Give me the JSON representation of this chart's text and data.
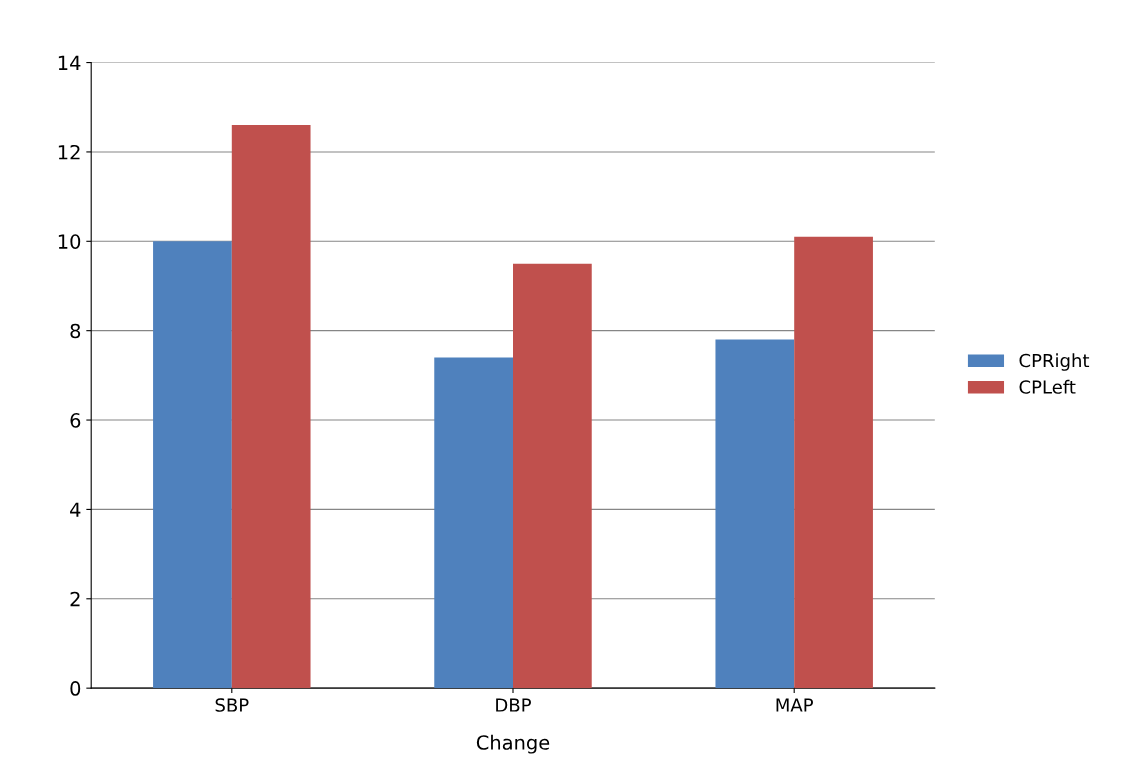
{
  "chart_data": {
    "type": "bar",
    "xlabel": "Change",
    "categories": [
      "SBP",
      "DBP",
      "MAP"
    ],
    "series": [
      {
        "name": "CPRight",
        "color": "#4f81bd",
        "values": [
          10,
          7.4,
          7.8
        ]
      },
      {
        "name": "CPLeft",
        "color": "#c0504d",
        "values": [
          12.6,
          9.5,
          10.1
        ]
      }
    ],
    "ylim": [
      0,
      14
    ],
    "yticks": [
      0,
      2,
      4,
      6,
      8,
      10,
      12,
      14
    ],
    "grid": "y",
    "legend": "right"
  }
}
